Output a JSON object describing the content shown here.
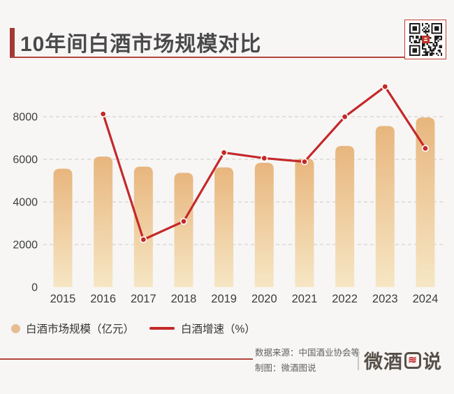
{
  "header": {
    "title": "10年间白酒市场规模对比"
  },
  "chart_data": {
    "type": "bar+line",
    "title": "10年间白酒市场规模对比",
    "categories": [
      "2015",
      "2016",
      "2017",
      "2018",
      "2019",
      "2020",
      "2021",
      "2022",
      "2023",
      "2024"
    ],
    "series": [
      {
        "name": "白酒市场规模（亿元）",
        "type": "bar",
        "values": [
          5559,
          6126,
          5654,
          5364,
          5618,
          5836,
          6033,
          6626,
          7563,
          7964
        ]
      },
      {
        "name": "白酒增速（%）",
        "type": "line",
        "percent_values": [
          null,
          10.2,
          -7.7,
          -5.1,
          4.7,
          3.9,
          3.4,
          9.8,
          14.1,
          5.3
        ],
        "plotted_on_primary_axis": [
          null,
          8126,
          2230,
          3086,
          6314,
          6051,
          5886,
          7994,
          9411,
          6512
        ]
      }
    ],
    "y_ticks": [
      0,
      2000,
      4000,
      6000,
      8000
    ],
    "ylim": [
      0,
      10300
    ],
    "grid": "horizontal dashed",
    "legend_position": "bottom-left",
    "colors": {
      "bar_gradient_top": "#e8b67e",
      "bar_gradient_bottom": "#f6e6c4",
      "line": "#c5282a",
      "marker_border": "#ffffff",
      "grid": "#d6d3d0",
      "axis_label": "#3d3d3d",
      "accent_red": "#ad3b33",
      "background": "#f7f6f5"
    }
  },
  "legend": {
    "bar_label": "白酒市场规模（亿元）",
    "line_label": "白酒增速（%）"
  },
  "footer": {
    "source_line1": "数据来源：中国酒业协会等",
    "source_line2": "制图：微酒图说",
    "logo_prefix": "微酒",
    "logo_boxed_glyph": "≋",
    "logo_suffix": "说"
  }
}
